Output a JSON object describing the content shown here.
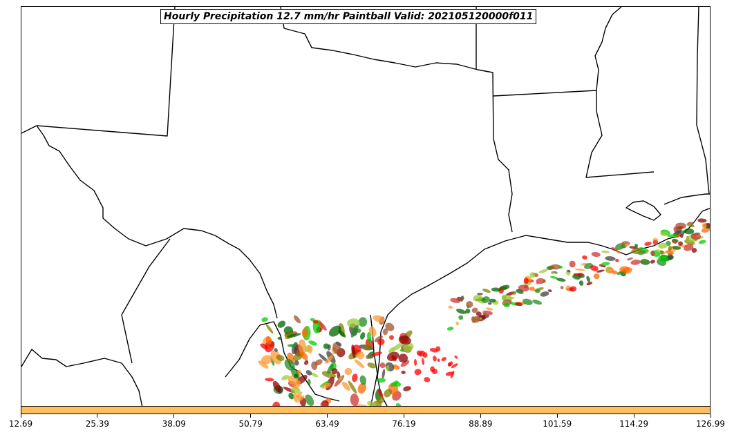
{
  "title": "Hourly Precipitation 12.7 mm/hr Paintball Valid: 202105120000f011",
  "colorbar": {
    "color": "#ffbf5f",
    "tick_labels": [
      "12.69",
      "25.39",
      "38.09",
      "50.79",
      "63.49",
      "76.19",
      "88.89",
      "101.59",
      "114.29",
      "126.99"
    ]
  },
  "member_colors": [
    "#8b0000",
    "#cd3333",
    "#ff0000",
    "#ff6a00",
    "#ff9933",
    "#808000",
    "#9acd32",
    "#00cd00",
    "#228b22",
    "#006400",
    "#a0522d",
    "#404040"
  ]
}
